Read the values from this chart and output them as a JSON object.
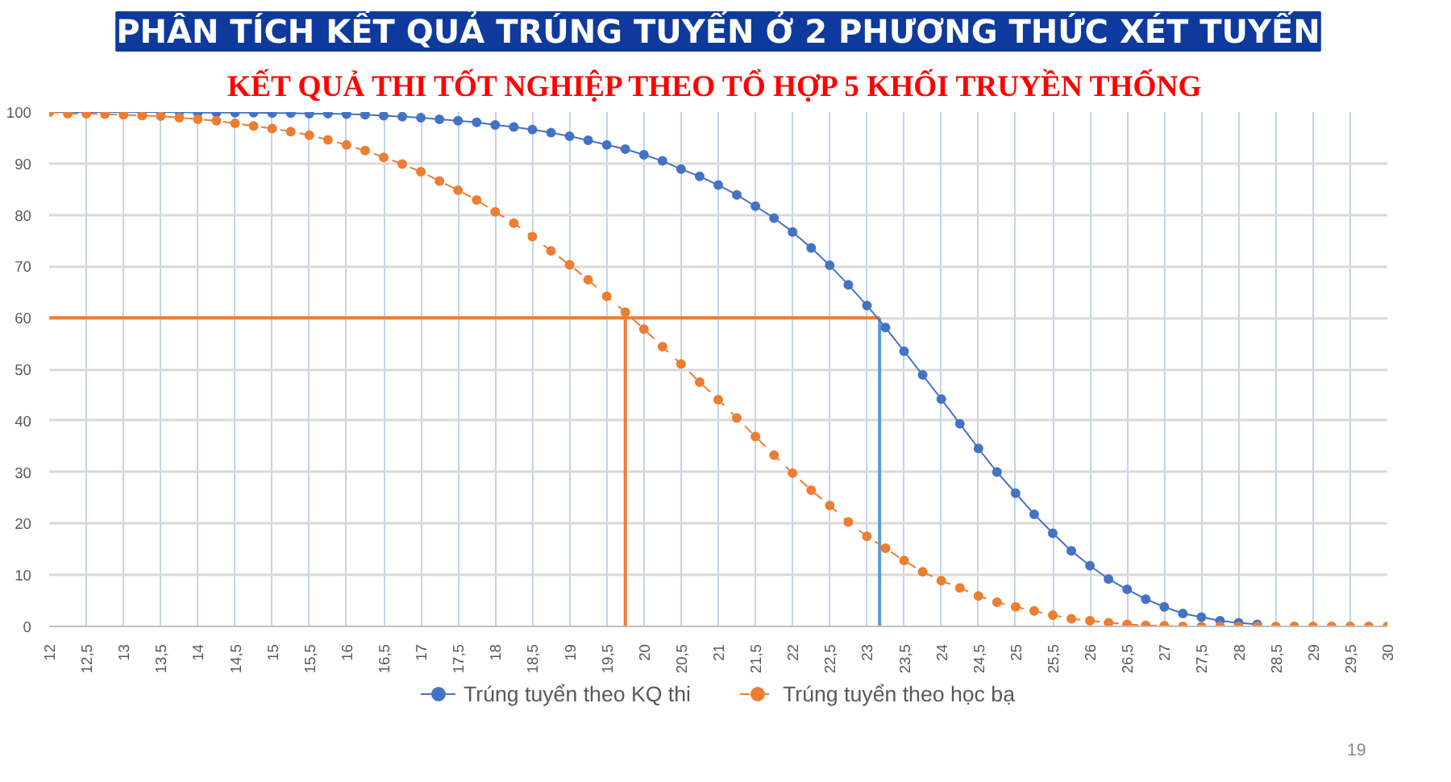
{
  "chart_data": {
    "type": "line",
    "title": "PHÂN TÍCH KẾT QUẢ TRÚNG TUYỂN Ở 2 PHƯƠNG THỨC XÉT TUYỂN",
    "subtitle": "KẾT QUẢ THI TỐT NGHIỆP THEO TỔ HỢP 5 KHỐI TRUYỀN THỐNG",
    "annotations": [
      "19"
    ],
    "x": [
      12,
      12.25,
      12.5,
      12.75,
      13,
      13.25,
      13.5,
      13.75,
      14,
      14.25,
      14.5,
      14.75,
      15,
      15.25,
      15.5,
      15.75,
      16,
      16.25,
      16.5,
      16.75,
      17,
      17.25,
      17.5,
      17.75,
      18,
      18.25,
      18.5,
      18.75,
      19,
      19.25,
      19.5,
      19.75,
      20,
      20.25,
      20.5,
      20.75,
      21,
      21.25,
      21.5,
      21.75,
      22,
      22.25,
      22.5,
      22.75,
      23,
      23.25,
      23.5,
      23.75,
      24,
      24.25,
      24.5,
      24.75,
      25,
      25.25,
      25.5,
      25.75,
      26,
      26.25,
      26.5,
      26.75,
      27,
      27.25,
      27.5,
      27.75,
      28,
      28.25,
      28.5,
      28.75,
      29,
      29.25,
      29.5,
      29.75,
      30
    ],
    "series": [
      {
        "name": "Trúng tuyển theo KQ thi",
        "color": "#4472c4",
        "line_style": "solid",
        "values": [
          100,
          100,
          100,
          100,
          100,
          100,
          100,
          100,
          99.9,
          99.9,
          99.9,
          99.9,
          99.8,
          99.8,
          99.7,
          99.7,
          99.6,
          99.5,
          99.3,
          99.1,
          98.9,
          98.6,
          98.3,
          98.0,
          97.5,
          97.1,
          96.6,
          96.0,
          95.3,
          94.5,
          93.6,
          92.8,
          91.7,
          90.5,
          88.9,
          87.5,
          85.8,
          83.9,
          81.7,
          79.4,
          76.7,
          73.6,
          70.2,
          66.4,
          62.4,
          58.1,
          53.5,
          48.9,
          44.2,
          39.4,
          34.6,
          30.0,
          25.9,
          21.8,
          18.1,
          14.7,
          11.8,
          9.2,
          7.2,
          5.3,
          3.8,
          2.5,
          1.8,
          1.1,
          0.7,
          0.4,
          null,
          null,
          null,
          null,
          null,
          null,
          null
        ]
      },
      {
        "name": "Trúng tuyển theo học bạ",
        "color": "#ed7d31",
        "line_style": "dashed",
        "values": [
          100,
          99.7,
          99.7,
          99.6,
          99.5,
          99.3,
          99.2,
          98.9,
          98.6,
          98.3,
          97.8,
          97.3,
          96.8,
          96.2,
          95.5,
          94.6,
          93.6,
          92.5,
          91.2,
          89.9,
          88.4,
          86.6,
          84.8,
          82.9,
          80.6,
          78.4,
          75.8,
          73.0,
          70.3,
          67.4,
          64.2,
          61.1,
          57.8,
          54.4,
          51.0,
          47.5,
          44.1,
          40.5,
          36.9,
          33.3,
          29.8,
          26.5,
          23.5,
          20.3,
          17.5,
          15.2,
          12.8,
          10.6,
          8.9,
          7.5,
          5.9,
          4.7,
          3.8,
          3.0,
          2.2,
          1.5,
          1.1,
          0.7,
          0.4,
          0.2,
          0.1,
          0,
          0,
          0,
          0,
          0,
          0,
          0,
          0,
          0,
          0,
          0,
          0
        ]
      }
    ],
    "ref_lines": [
      {
        "axis": "y",
        "value": 60,
        "color": "#ed7d31"
      },
      {
        "axis": "x",
        "value": 19.75,
        "color": "#ed7d31"
      },
      {
        "axis": "x",
        "value": 23.17,
        "color": "#5b9bd5"
      }
    ],
    "xlim": [
      12,
      30
    ],
    "ylim": [
      0,
      100
    ],
    "xticks": [
      12,
      {
        "value": 12.5,
        "label": "12,5"
      },
      13,
      {
        "value": 13.5,
        "label": "13,5"
      },
      14,
      {
        "value": 14.5,
        "label": "14,5"
      },
      15,
      {
        "value": 15.5,
        "label": "15,5"
      },
      16,
      {
        "value": 16.5,
        "label": "16,5"
      },
      17,
      {
        "value": 17.5,
        "label": "17,5"
      },
      18,
      {
        "value": 18.5,
        "label": "18,5"
      },
      19,
      {
        "value": 19.5,
        "label": "19,5"
      },
      20,
      {
        "value": 20.5,
        "label": "20,5"
      },
      21,
      {
        "value": 21.5,
        "label": "21,5"
      },
      22,
      {
        "value": 22.5,
        "label": "22,5"
      },
      23,
      {
        "value": 23.5,
        "label": "23,5"
      },
      24,
      {
        "value": 24.5,
        "label": "24,5"
      },
      25,
      {
        "value": 25.5,
        "label": "25,5"
      },
      26,
      {
        "value": 26.5,
        "label": "26,5"
      },
      27,
      {
        "value": 27.5,
        "label": "27,5"
      },
      28,
      {
        "value": 28.5,
        "label": "28,5"
      },
      29,
      {
        "value": 29.5,
        "label": "29,5"
      },
      30
    ],
    "yticks": [
      0,
      10,
      20,
      30,
      40,
      50,
      60,
      70,
      80,
      90,
      100
    ],
    "grid": true,
    "legend": "bottom",
    "marker": "circle"
  }
}
